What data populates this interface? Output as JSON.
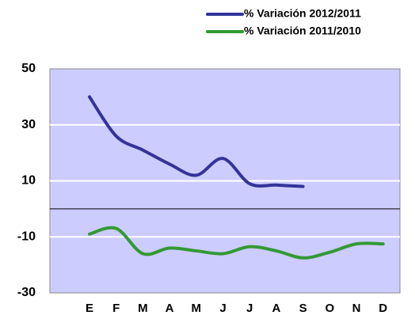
{
  "chart_data": {
    "type": "line",
    "categories": [
      "E",
      "F",
      "M",
      "A",
      "M",
      "J",
      "J",
      "A",
      "S",
      "O",
      "N",
      "D"
    ],
    "series": [
      {
        "name": "% Variación 2012/2011",
        "color": "#333399",
        "values": [
          40,
          26,
          21,
          16,
          12,
          18,
          9,
          8.5,
          8,
          null,
          null,
          null
        ]
      },
      {
        "name": "% Variación 2011/2010",
        "color": "#339933",
        "values": [
          -9,
          -7,
          -16,
          -14,
          -15,
          -16,
          -13.5,
          -15,
          -17.5,
          -15.5,
          -12.5,
          -12.5
        ]
      }
    ],
    "ylim": [
      -30,
      50
    ],
    "yticks": [
      -30,
      -10,
      10,
      30,
      50
    ],
    "grid": true,
    "background": "#ccccff",
    "legend": "top-right"
  }
}
